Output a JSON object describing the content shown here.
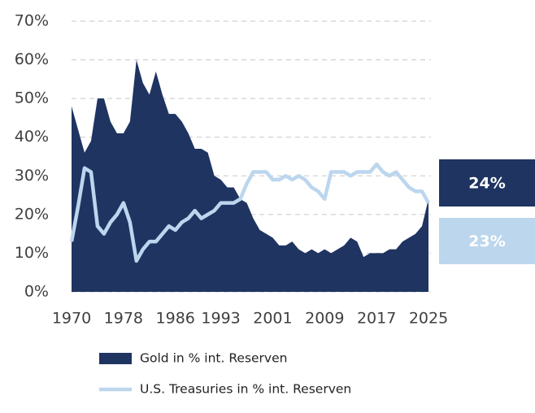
{
  "chart_data": {
    "type": "area",
    "x": [
      1970,
      1971,
      1972,
      1973,
      1974,
      1975,
      1976,
      1977,
      1978,
      1979,
      1980,
      1981,
      1982,
      1983,
      1984,
      1985,
      1986,
      1987,
      1988,
      1989,
      1990,
      1991,
      1992,
      1993,
      1994,
      1995,
      1996,
      1997,
      1998,
      1999,
      2000,
      2001,
      2002,
      2003,
      2004,
      2005,
      2006,
      2007,
      2008,
      2009,
      2010,
      2011,
      2012,
      2013,
      2014,
      2015,
      2016,
      2017,
      2018,
      2019,
      2020,
      2021,
      2022,
      2023,
      2024,
      2025
    ],
    "xlim": [
      1970,
      2025
    ],
    "xticks": [
      1970,
      1978,
      1986,
      1993,
      2001,
      2009,
      2017,
      2025
    ],
    "ylim": [
      0,
      70
    ],
    "yticks": [
      {
        "value": 0,
        "label": "0%"
      },
      {
        "value": 10,
        "label": "10%"
      },
      {
        "value": 20,
        "label": "20%"
      },
      {
        "value": 30,
        "label": "30%"
      },
      {
        "value": 40,
        "label": "40%"
      },
      {
        "value": 50,
        "label": "50%"
      },
      {
        "value": 60,
        "label": "60%"
      },
      {
        "value": 70,
        "label": "70%"
      }
    ],
    "grid": true,
    "legend": "bottom",
    "series": [
      {
        "name": "Gold in % int. Reserven",
        "type": "area",
        "color": "#1f3461",
        "end_label": "24%",
        "values": [
          48,
          42,
          36,
          39,
          50,
          50,
          44,
          41,
          41,
          44,
          60,
          54,
          51,
          57,
          51,
          46,
          46,
          44,
          41,
          37,
          37,
          36,
          30,
          29,
          27,
          27,
          24,
          23,
          19,
          16,
          15,
          14,
          12,
          12,
          13,
          11,
          10,
          11,
          10,
          11,
          10,
          11,
          12,
          14,
          13,
          9,
          10,
          10,
          10,
          11,
          11,
          13,
          14,
          15,
          17,
          24
        ]
      },
      {
        "name": "U.S. Treasuries in % int. Reserven",
        "type": "line",
        "color": "#bcd6ee",
        "end_label": "23%",
        "values": [
          13,
          22,
          32,
          31,
          17,
          15,
          18,
          20,
          23,
          18,
          8,
          11,
          13,
          13,
          15,
          17,
          16,
          18,
          19,
          21,
          19,
          20,
          21,
          23,
          23,
          23,
          24,
          28,
          31,
          31,
          31,
          29,
          29,
          30,
          29,
          30,
          29,
          27,
          26,
          24,
          31,
          31,
          31,
          30,
          31,
          31,
          31,
          33,
          31,
          30,
          31,
          29,
          27,
          26,
          26,
          23
        ]
      }
    ]
  }
}
